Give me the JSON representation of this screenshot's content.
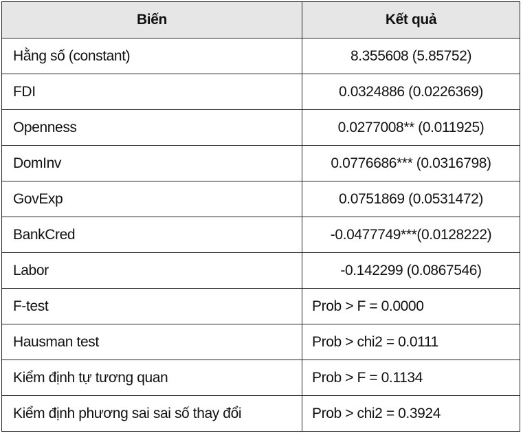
{
  "table": {
    "header": [
      "Biến",
      "Kết quả"
    ],
    "rows": [
      [
        "Hằng số (constant)",
        "8.355608 (5.85752)"
      ],
      [
        "FDI",
        "0.0324886 (0.0226369)"
      ],
      [
        "Openness",
        "0.0277008** (0.011925)"
      ],
      [
        "DomInv",
        "0.0776686*** (0.0316798)"
      ],
      [
        "GovExp",
        "0.0751869 (0.0531472)"
      ],
      [
        "BankCred",
        "-0.0477749***(0.0128222)"
      ],
      [
        "Labor",
        "-0.142299 (0.0867546)"
      ],
      [
        "F-test",
        "Prob > F = 0.0000"
      ],
      [
        "Hausman test",
        "Prob > chi2 = 0.0111"
      ],
      [
        "Kiểm định tự tương quan",
        "Prob > F = 0.1134"
      ],
      [
        "Kiểm định phương sai sai số thay đổi",
        "Prob > chi2 = 0.3924"
      ]
    ]
  }
}
